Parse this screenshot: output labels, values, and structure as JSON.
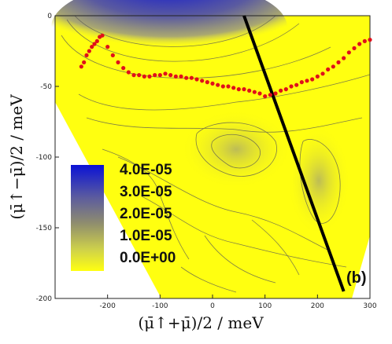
{
  "chart_data": {
    "type": "heatmap",
    "panel_label": "(b)",
    "xlabel": "(μ̄↑+μ̄)/2   /   meV",
    "ylabel": "(μ̄↑−μ̄)/2   /   meV",
    "xlim": [
      -300,
      300
    ],
    "ylim": [
      -200,
      0
    ],
    "xticks": [
      "-200",
      "-100",
      "0",
      "100",
      "200",
      "300"
    ],
    "yticks": [
      "0",
      "-50",
      "-100",
      "-150",
      "-200"
    ],
    "colorbar": {
      "labels": [
        "4.0E-05",
        "3.0E-05",
        "2.0E-05",
        "1.0E-05",
        "0.0E+00"
      ],
      "values": [
        4e-05,
        3e-05,
        2e-05,
        1e-05,
        0.0
      ],
      "colors": [
        "#0a12d6",
        "#5a5aa0",
        "#8f8d6e",
        "#cfd24a",
        "#ffff10"
      ]
    },
    "black_line": {
      "x": [
        60,
        250
      ],
      "y": [
        0,
        -195
      ]
    },
    "red_points": {
      "x": [
        -250,
        -245,
        -240,
        -235,
        -230,
        -225,
        -220,
        -215,
        -210,
        -200,
        -190,
        -180,
        -170,
        -160,
        -150,
        -140,
        -130,
        -120,
        -110,
        -100,
        -90,
        -80,
        -70,
        -60,
        -50,
        -40,
        -30,
        -20,
        -10,
        0,
        10,
        20,
        30,
        40,
        50,
        60,
        70,
        80,
        90,
        100,
        110,
        120,
        130,
        140,
        150,
        160,
        170,
        180,
        190,
        200,
        210,
        220,
        230,
        240,
        250,
        260,
        270,
        280,
        290,
        300
      ],
      "y": [
        -36,
        -33,
        -28,
        -25,
        -22,
        -20,
        -18,
        -15,
        -14,
        -22,
        -28,
        -33,
        -37,
        -40,
        -42,
        -42,
        -43,
        -43,
        -42,
        -42,
        -41,
        -42,
        -43,
        -43,
        -44,
        -44,
        -45,
        -46,
        -47,
        -48,
        -49,
        -50,
        -50,
        -51,
        -52,
        -52,
        -53,
        -54,
        -55,
        -57,
        -56,
        -55,
        -53,
        -52,
        -50,
        -49,
        -47,
        -46,
        -45,
        -43,
        -41,
        -38,
        -36,
        -33,
        -30,
        -26,
        -23,
        -20,
        -18,
        -17
      ]
    }
  }
}
